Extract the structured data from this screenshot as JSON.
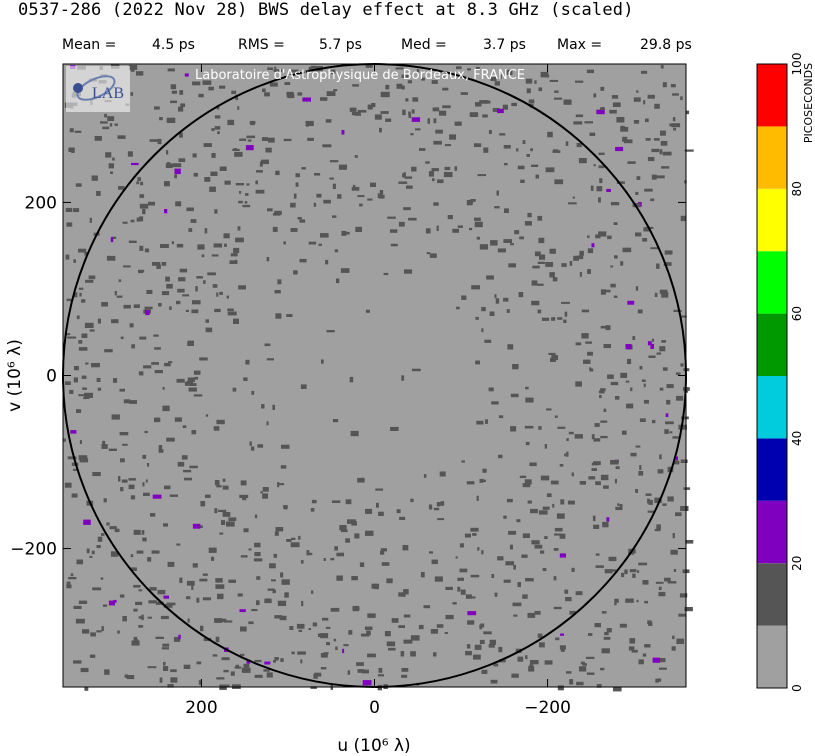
{
  "header": {
    "title": "0537-286  (2022 Nov 28)   BWS delay effect at  8.3 GHz (scaled)",
    "stats": [
      {
        "label": "Mean =",
        "value": "4.5 ps"
      },
      {
        "label": "RMS =",
        "value": "5.7 ps"
      },
      {
        "label": "Med =",
        "value": "3.7 ps"
      },
      {
        "label": "Max =",
        "value": "29.8 ps"
      }
    ]
  },
  "overlay": {
    "credit": "Laboratoire d'Astrophysique de Bordeaux, FRANCE",
    "logo_text": "LAB"
  },
  "chart_data": {
    "type": "heatmap",
    "title": "0537-286  (2022 Nov 28)   BWS delay effect at  8.3 GHz (scaled)",
    "xlabel": "u  (10⁶ λ)",
    "ylabel": "v  (10⁶ λ)",
    "x_ticks": [
      "200",
      "0",
      "−200"
    ],
    "y_ticks": [
      "200",
      "0",
      "−200"
    ],
    "xlim": [
      360,
      -360
    ],
    "ylim": [
      -360,
      360
    ],
    "circle_radius": 360,
    "background_value_range": [
      0,
      10
    ],
    "colorbar": {
      "label": "PICOSECONDS",
      "ticks": [
        "0",
        "20",
        "40",
        "60",
        "80",
        "100"
      ],
      "bins": [
        {
          "range": [
            0,
            10
          ],
          "color": "#a0a0a0"
        },
        {
          "range": [
            10,
            20
          ],
          "color": "#555555"
        },
        {
          "range": [
            20,
            30
          ],
          "color": "#8000c0"
        },
        {
          "range": [
            30,
            40
          ],
          "color": "#0000b0"
        },
        {
          "range": [
            40,
            50
          ],
          "color": "#00ccdd"
        },
        {
          "range": [
            50,
            60
          ],
          "color": "#009900"
        },
        {
          "range": [
            60,
            70
          ],
          "color": "#00ff00"
        },
        {
          "range": [
            70,
            80
          ],
          "color": "#ffff00"
        },
        {
          "range": [
            80,
            90
          ],
          "color": "#ffbb00"
        },
        {
          "range": [
            90,
            100
          ],
          "color": "#ff0000"
        }
      ]
    }
  }
}
